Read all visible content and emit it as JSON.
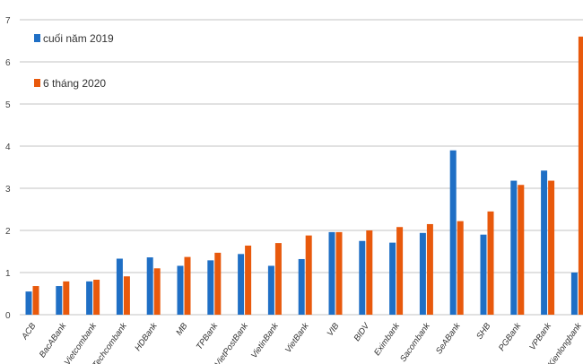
{
  "chart_data": {
    "type": "bar",
    "title": "",
    "xlabel": "",
    "ylabel": "",
    "ylim": [
      0,
      7
    ],
    "yticks": [
      0,
      1,
      2,
      3,
      4,
      5,
      6,
      7
    ],
    "grid": true,
    "legend_position": "top-left",
    "categories": [
      "ACB",
      "BacABank",
      "Vietcombank",
      "Techcombank",
      "HDBank",
      "MB",
      "TPBank",
      "LienVietPostBank",
      "VietinBank",
      "VietBank",
      "VIB",
      "BIDV",
      "Eximbank",
      "Sacombank",
      "SeABank",
      "SHB",
      "PGBank",
      "VPBank",
      "Kienlongbank"
    ],
    "series": [
      {
        "name": "cuối năm 2019",
        "color": "#1f6fc5",
        "values": [
          0.55,
          0.68,
          0.79,
          1.33,
          1.36,
          1.16,
          1.29,
          1.44,
          1.16,
          1.32,
          1.96,
          1.75,
          1.71,
          1.94,
          3.9,
          1.9,
          3.18,
          3.42,
          1.0
        ]
      },
      {
        "name": "6 tháng 2020",
        "color": "#e8590c",
        "values": [
          0.68,
          0.79,
          0.83,
          0.91,
          1.1,
          1.37,
          1.47,
          1.64,
          1.7,
          1.88,
          1.96,
          2.0,
          2.08,
          2.15,
          2.22,
          2.45,
          3.08,
          3.18,
          6.6
        ]
      }
    ]
  }
}
